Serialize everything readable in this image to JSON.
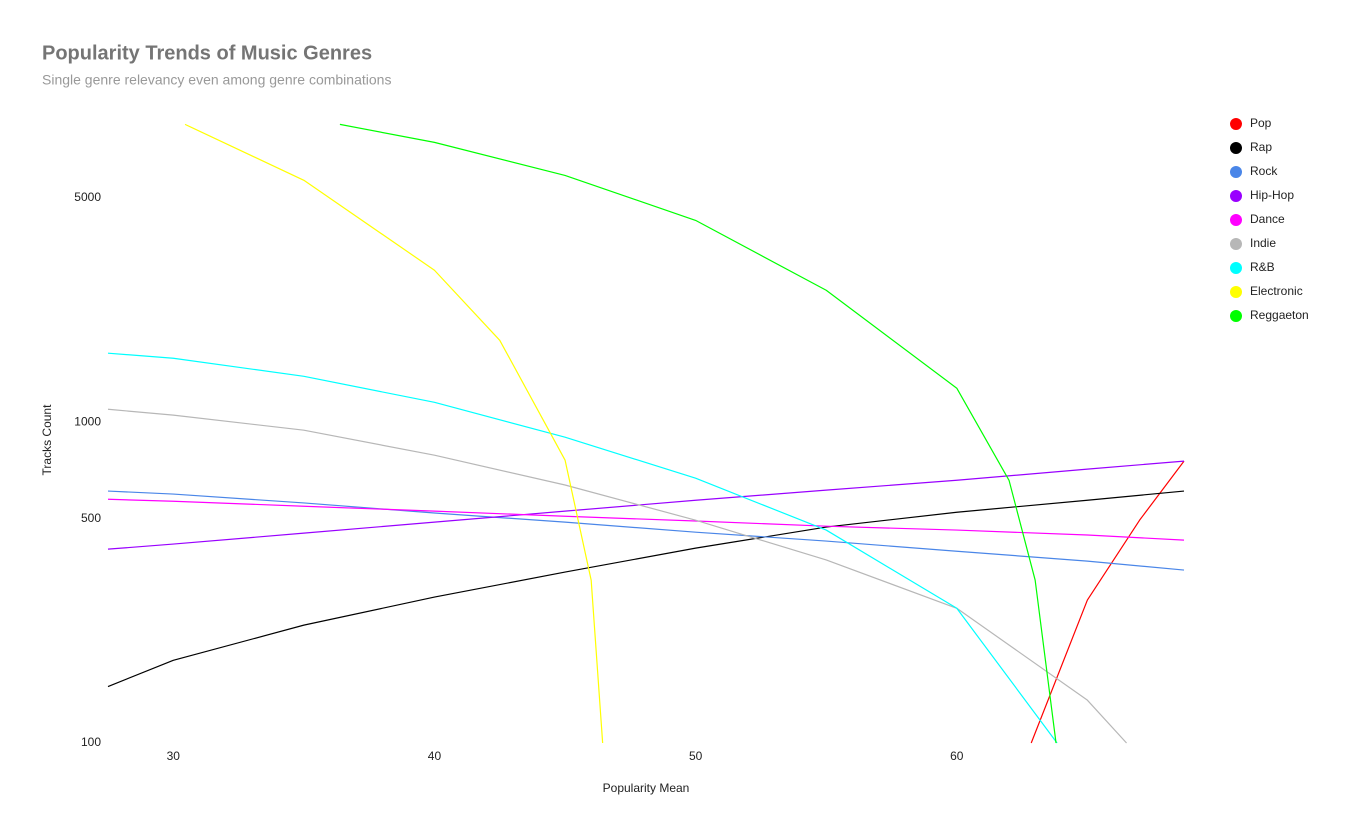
{
  "chart_data": {
    "type": "line",
    "title": "Popularity Trends of Music Genres",
    "subtitle": "Single genre relevancy even among genre combinations",
    "x_label": "Popularity Mean",
    "y_label": "Tracks Count",
    "yscale": "log",
    "grid": false,
    "legend": "right",
    "xlim": [
      27.5,
      68.7
    ],
    "ylim": [
      100,
      8500
    ],
    "xticks": [
      30,
      40,
      50,
      60
    ],
    "yticks": [
      100,
      500,
      1000,
      5000
    ],
    "series": [
      {
        "name": "Pop",
        "color": "#ff0000",
        "x": [
          62.85,
          65,
          67,
          68.7
        ],
        "values": [
          100,
          279,
          495,
          756
        ]
      },
      {
        "name": "Rap",
        "color": "#000000",
        "x": [
          27.5,
          30,
          35,
          40,
          45,
          50,
          55,
          60,
          65,
          68.7
        ],
        "values": [
          150,
          181,
          233,
          285,
          341,
          405,
          471,
          524,
          571,
          610
        ]
      },
      {
        "name": "Rock",
        "color": "#4a86e8",
        "x": [
          27.5,
          30,
          35,
          40,
          45,
          50,
          55,
          60,
          65,
          68.7
        ],
        "values": [
          610,
          597,
          560,
          521,
          488,
          454,
          426,
          396,
          369,
          346
        ]
      },
      {
        "name": "Hip-Hop",
        "color": "#9900ff",
        "x": [
          27.5,
          30,
          35,
          40,
          45,
          50,
          55,
          60,
          65,
          68.7
        ],
        "values": [
          402,
          417,
          451,
          488,
          528,
          571,
          614,
          659,
          714,
          756
        ]
      },
      {
        "name": "Dance",
        "color": "#ff00ff",
        "x": [
          27.5,
          30,
          35,
          40,
          45,
          50,
          55,
          60,
          65,
          68.7
        ],
        "values": [
          575,
          567,
          547,
          528,
          509,
          492,
          474,
          461,
          445,
          429
        ]
      },
      {
        "name": "Indie",
        "color": "#b7b7b7",
        "x": [
          27.5,
          30,
          35,
          40,
          45,
          50,
          55,
          60,
          65,
          66.5
        ],
        "values": [
          1097,
          1052,
          944,
          789,
          637,
          495,
          372,
          263,
          136,
          100
        ]
      },
      {
        "name": "R&B",
        "color": "#00ffff",
        "x": [
          27.5,
          30,
          35,
          40,
          45,
          50,
          55,
          60,
          63.84
        ],
        "values": [
          1641,
          1582,
          1390,
          1153,
          898,
          669,
          461,
          263,
          100
        ]
      },
      {
        "name": "Electronic",
        "color": "#ffff00",
        "x": [
          30.45,
          35,
          40,
          42.5,
          45,
          46,
          46.44
        ],
        "values": [
          8477,
          5675,
          2976,
          1800,
          762,
          322,
          100
        ]
      },
      {
        "name": "Reggaeton",
        "color": "#00ff00",
        "x": [
          36.38,
          40,
          45,
          50,
          55,
          60,
          62,
          63,
          63.8
        ],
        "values": [
          8477,
          7449,
          5875,
          4256,
          2578,
          1276,
          659,
          322,
          100
        ]
      }
    ]
  }
}
